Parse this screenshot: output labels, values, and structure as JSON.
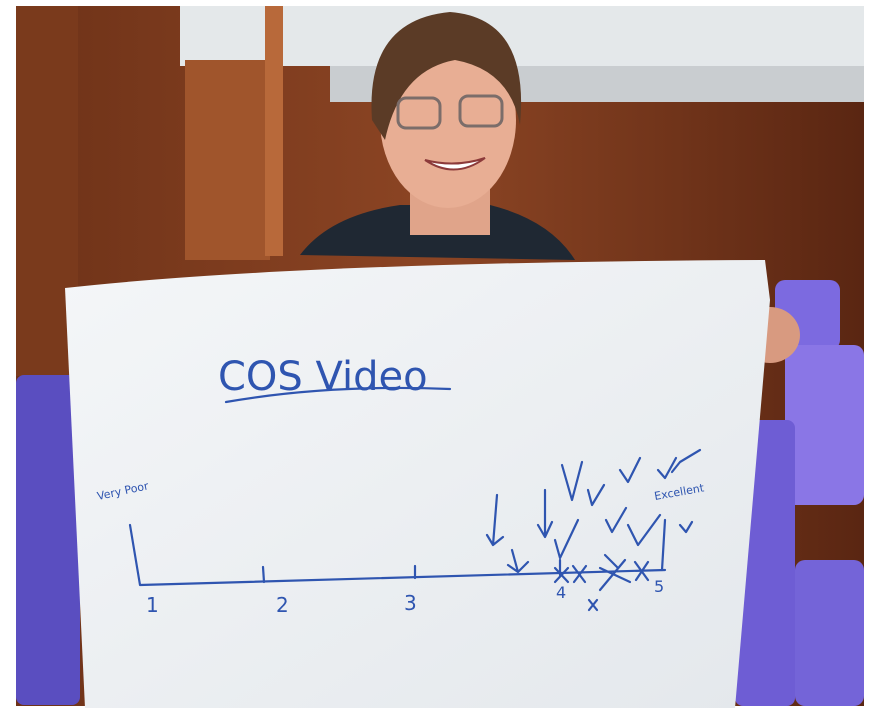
{
  "sign": {
    "title": "COS Video",
    "scale_low": "Very Poor",
    "scale_high": "Excellent",
    "scale_labels": [
      "1",
      "2",
      "3",
      "4",
      "5"
    ]
  }
}
